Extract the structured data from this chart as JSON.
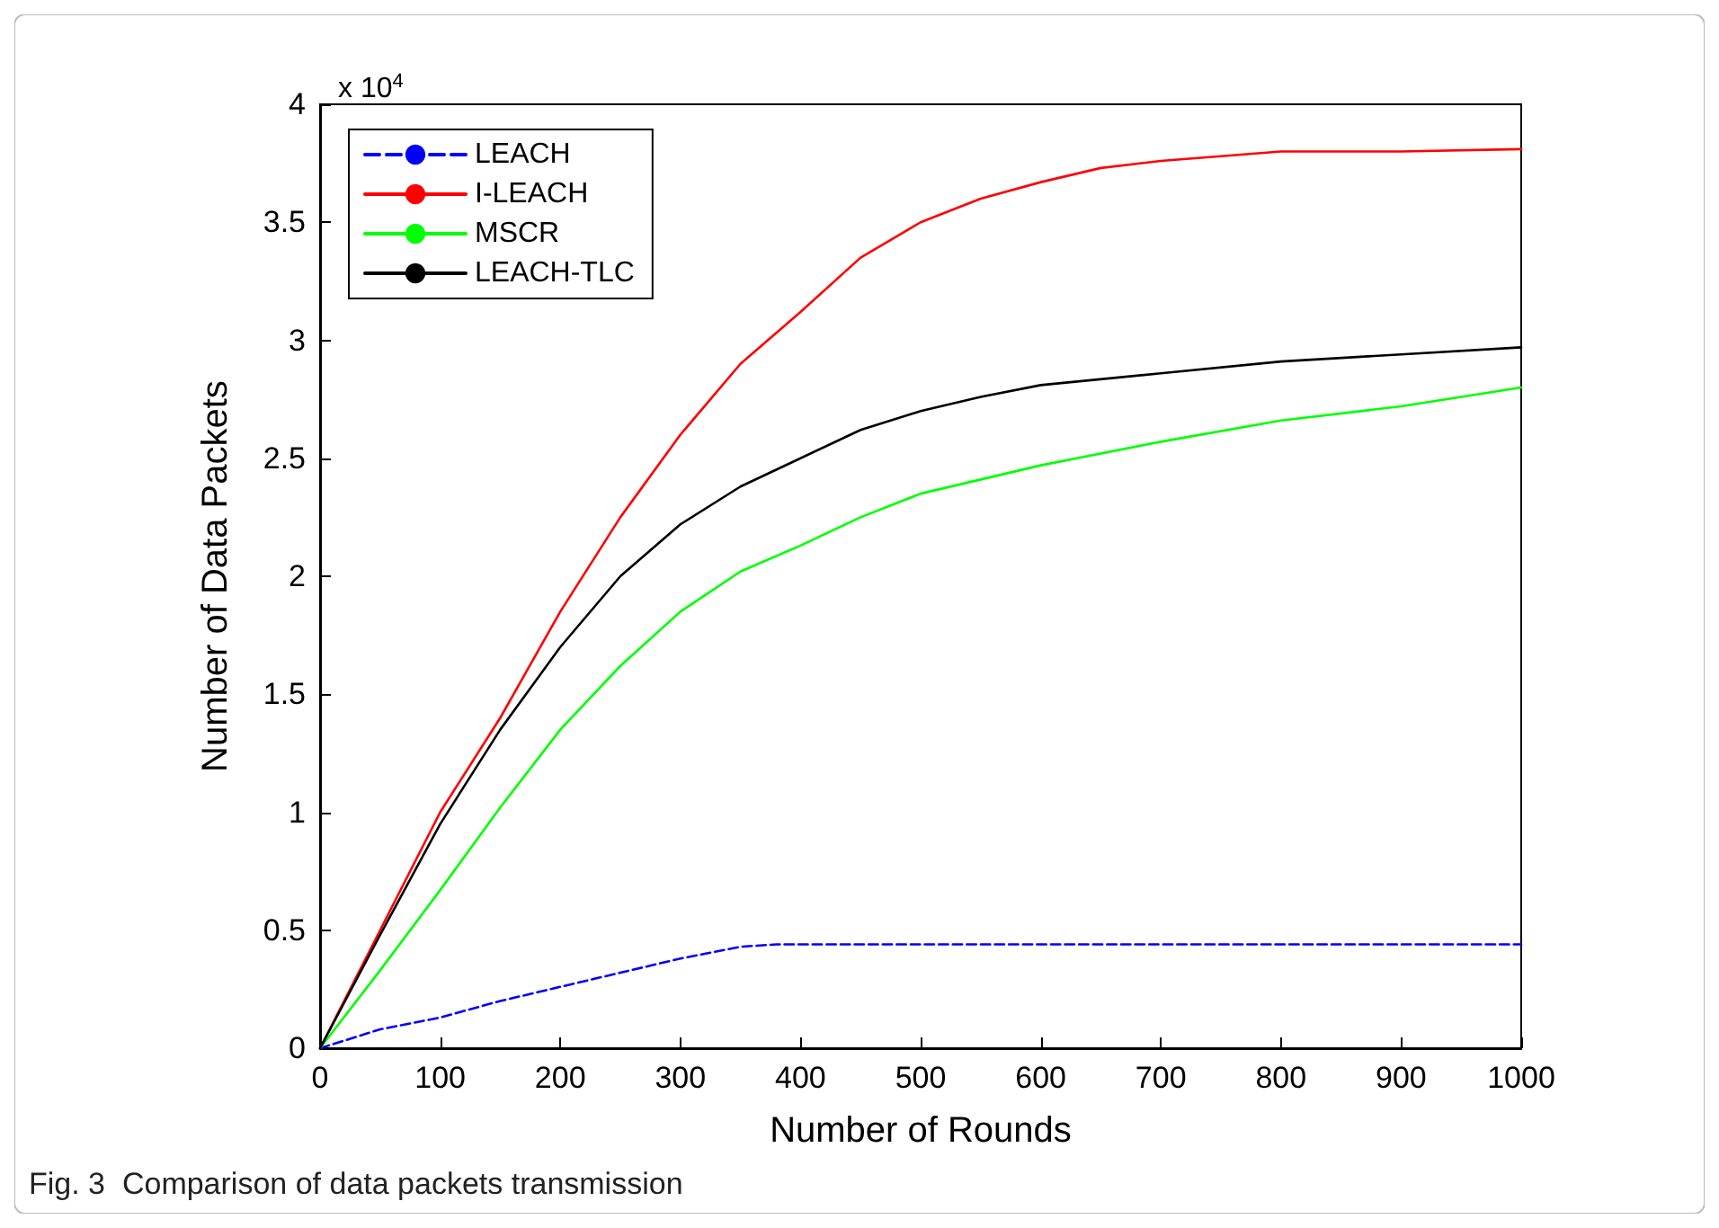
{
  "chart_data": {
    "type": "line",
    "xlabel": "Number of Rounds",
    "ylabel": "Number of Data Packets",
    "annotations": [
      "x 10$^{4}$",
      "Fig. 3  Comparison of data packets transmission"
    ],
    "xlim": [
      0,
      1000
    ],
    "xticks": [
      0,
      100,
      200,
      300,
      400,
      500,
      600,
      700,
      800,
      900,
      1000
    ],
    "ylim": [
      0,
      4
    ],
    "yticks": [
      0,
      0.5,
      1,
      1.5,
      2,
      2.5,
      3,
      3.5,
      4
    ],
    "grid": false,
    "legend": "top left",
    "marker": "none",
    "line_style": "solid",
    "series": [
      {
        "name": "LEACH",
        "color": "#0000ff",
        "line_style": "dashed",
        "x": [
          0,
          50,
          100,
          150,
          200,
          250,
          300,
          350,
          380,
          1000
        ],
        "values": [
          0,
          0.08,
          0.13,
          0.2,
          0.26,
          0.32,
          0.38,
          0.43,
          0.44,
          0.44
        ]
      },
      {
        "name": "I-LEACH",
        "color": "#ff0000",
        "x": [
          0,
          50,
          100,
          150,
          200,
          250,
          300,
          350,
          400,
          450,
          500,
          550,
          600,
          650,
          700,
          800,
          900,
          1000
        ],
        "values": [
          0,
          0.5,
          1.0,
          1.4,
          1.85,
          2.25,
          2.6,
          2.9,
          3.12,
          3.35,
          3.5,
          3.6,
          3.67,
          3.73,
          3.76,
          3.8,
          3.8,
          3.81
        ]
      },
      {
        "name": "MSCR",
        "color": "#00ff00",
        "x": [
          0,
          50,
          100,
          150,
          200,
          250,
          300,
          350,
          400,
          450,
          500,
          550,
          600,
          700,
          800,
          900,
          1000
        ],
        "values": [
          0,
          0.33,
          0.67,
          1.02,
          1.35,
          1.62,
          1.85,
          2.02,
          2.13,
          2.25,
          2.35,
          2.41,
          2.47,
          2.57,
          2.66,
          2.72,
          2.8
        ]
      },
      {
        "name": "LEACH-TLC",
        "color": "#000000",
        "x": [
          0,
          50,
          100,
          150,
          200,
          250,
          300,
          350,
          400,
          450,
          500,
          550,
          600,
          700,
          800,
          900,
          1000
        ],
        "values": [
          0,
          0.48,
          0.95,
          1.35,
          1.7,
          2.0,
          2.22,
          2.38,
          2.5,
          2.62,
          2.7,
          2.76,
          2.81,
          2.86,
          2.91,
          2.94,
          2.97
        ]
      }
    ]
  }
}
